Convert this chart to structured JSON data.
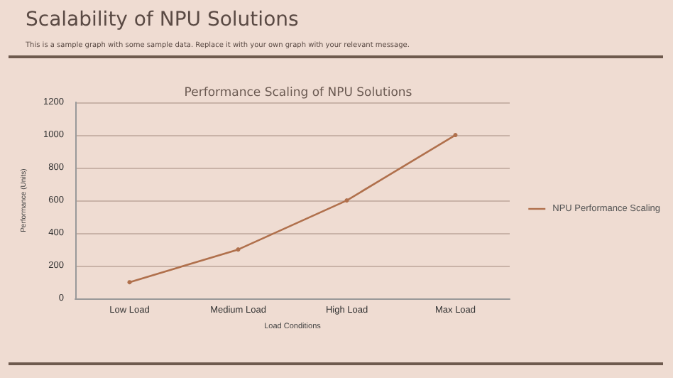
{
  "chart_data": {
    "type": "line",
    "title": "Scalability of NPU Solutions",
    "subtitle": "This is a sample graph with some sample data. Replace it with your own graph with your relevant message.",
    "annotations": [
      "Performance Scaling of NPU Solutions"
    ],
    "xlabel": "Load Conditions",
    "ylabel": "Performance (Units)",
    "categories": [
      "Low Load",
      "Medium Load",
      "High Load",
      "Max Load"
    ],
    "series": [
      {
        "name": "NPU Performance Scaling",
        "color": "#b0704c",
        "values": [
          100,
          300,
          600,
          1000
        ]
      }
    ],
    "ylim": [
      0,
      1200
    ],
    "yticks": [
      0,
      200,
      400,
      600,
      800,
      1000,
      1200
    ],
    "grid": "y",
    "legend": "right",
    "marker": "circle",
    "line_style": "solid"
  }
}
